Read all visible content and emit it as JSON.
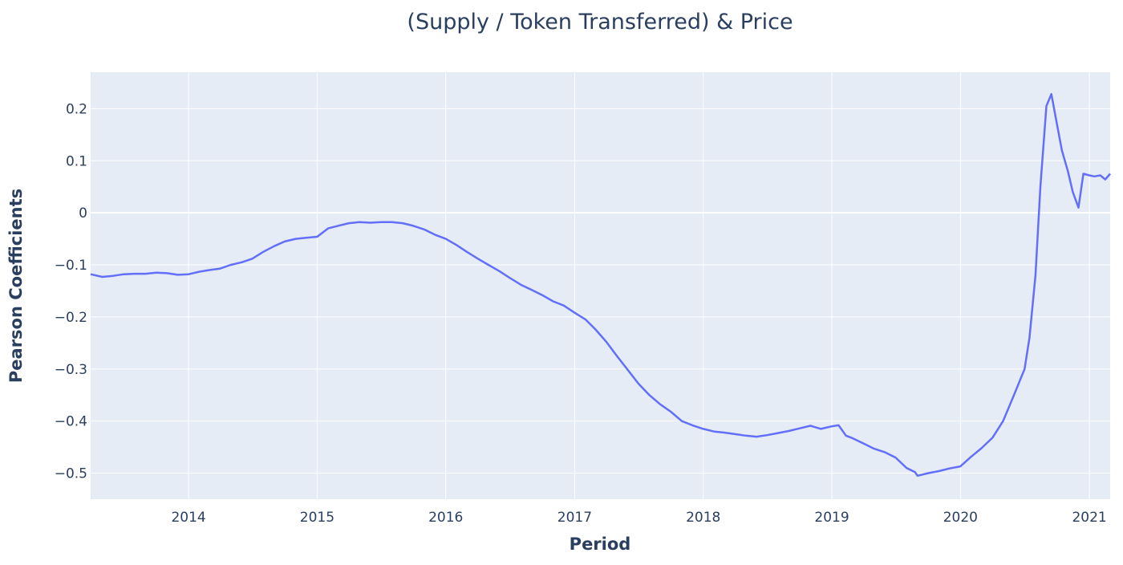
{
  "chart_data": {
    "type": "line",
    "title": "(Supply / Token Transferred) & Price",
    "xlabel": "Period",
    "ylabel": "Pearson Coefficients",
    "x_ticks": [
      "2014",
      "2015",
      "2016",
      "2017",
      "2018",
      "2019",
      "2020",
      "2021"
    ],
    "y_ticks": [
      "0.2",
      "0.1",
      "0",
      "−0.1",
      "−0.2",
      "−0.3",
      "−0.4",
      "−0.5"
    ],
    "xlim": [
      "2013-03-29",
      "2021-03-01"
    ],
    "ylim": [
      -0.55,
      0.27
    ],
    "grid": true,
    "colors": {
      "line": "#636efa",
      "plot_bg": "#e5ecf6",
      "grid": "#ffffff",
      "text": "#2a3f5f"
    },
    "series": [
      {
        "x": [
          "2013-03-29",
          "2013-05-01",
          "2013-06-01",
          "2013-07-01",
          "2013-08-01",
          "2013-09-01",
          "2013-10-01",
          "2013-11-01",
          "2013-12-01",
          "2014-01-01",
          "2014-02-01",
          "2014-03-01",
          "2014-04-01",
          "2014-05-01",
          "2014-06-01",
          "2014-07-01",
          "2014-08-01",
          "2014-09-01",
          "2014-10-01",
          "2014-11-01",
          "2014-12-01",
          "2015-01-01",
          "2015-02-01",
          "2015-03-01",
          "2015-04-01",
          "2015-05-01",
          "2015-06-01",
          "2015-07-01",
          "2015-08-01",
          "2015-09-01",
          "2015-10-01",
          "2015-11-01",
          "2015-12-01",
          "2016-01-01",
          "2016-02-01",
          "2016-03-01",
          "2016-04-01",
          "2016-05-01",
          "2016-06-01",
          "2016-07-01",
          "2016-08-01",
          "2016-09-01",
          "2016-10-01",
          "2016-11-01",
          "2016-12-01",
          "2017-01-01",
          "2017-02-01",
          "2017-03-01",
          "2017-04-01",
          "2017-05-01",
          "2017-06-01",
          "2017-07-01",
          "2017-08-01",
          "2017-09-01",
          "2017-10-01",
          "2017-11-01",
          "2017-12-01",
          "2018-01-01",
          "2018-02-01",
          "2018-03-01",
          "2018-04-01",
          "2018-05-01",
          "2018-06-01",
          "2018-07-01",
          "2018-08-01",
          "2018-09-01",
          "2018-10-01",
          "2018-11-01",
          "2018-12-01",
          "2019-01-01",
          "2019-01-20",
          "2019-02-10",
          "2019-03-01",
          "2019-04-01",
          "2019-05-01",
          "2019-06-01",
          "2019-07-01",
          "2019-08-01",
          "2019-08-25",
          "2019-09-01",
          "2019-10-01",
          "2019-11-01",
          "2019-12-01",
          "2020-01-01",
          "2020-02-01",
          "2020-03-01",
          "2020-04-01",
          "2020-05-01",
          "2020-06-01",
          "2020-07-01",
          "2020-07-15",
          "2020-08-01",
          "2020-08-15",
          "2020-09-01",
          "2020-09-15",
          "2020-10-01",
          "2020-10-15",
          "2020-11-01",
          "2020-11-15",
          "2020-12-01",
          "2020-12-15",
          "2021-01-01",
          "2021-01-15",
          "2021-02-01",
          "2021-02-15",
          "2021-03-01"
        ],
        "y": [
          -0.118,
          -0.123,
          -0.121,
          -0.118,
          -0.117,
          -0.117,
          -0.115,
          -0.116,
          -0.119,
          -0.118,
          -0.113,
          -0.11,
          -0.107,
          -0.1,
          -0.095,
          -0.088,
          -0.075,
          -0.064,
          -0.055,
          -0.05,
          -0.048,
          -0.046,
          -0.03,
          -0.025,
          -0.02,
          -0.018,
          -0.019,
          -0.018,
          -0.018,
          -0.02,
          -0.025,
          -0.032,
          -0.042,
          -0.05,
          -0.062,
          -0.075,
          -0.088,
          -0.1,
          -0.112,
          -0.125,
          -0.138,
          -0.148,
          -0.158,
          -0.17,
          -0.178,
          -0.192,
          -0.205,
          -0.224,
          -0.248,
          -0.275,
          -0.302,
          -0.328,
          -0.35,
          -0.368,
          -0.382,
          -0.4,
          -0.408,
          -0.415,
          -0.42,
          -0.422,
          -0.425,
          -0.428,
          -0.43,
          -0.427,
          -0.423,
          -0.419,
          -0.414,
          -0.409,
          -0.415,
          -0.41,
          -0.408,
          -0.428,
          -0.433,
          -0.443,
          -0.453,
          -0.46,
          -0.47,
          -0.49,
          -0.498,
          -0.505,
          -0.5,
          -0.496,
          -0.491,
          -0.487,
          -0.468,
          -0.452,
          -0.432,
          -0.4,
          -0.35,
          -0.3,
          -0.24,
          -0.12,
          0.05,
          0.205,
          0.228,
          0.17,
          0.12,
          0.08,
          0.04,
          0.01,
          0.075,
          0.072,
          0.07,
          0.072,
          0.064,
          0.075
        ]
      }
    ]
  }
}
